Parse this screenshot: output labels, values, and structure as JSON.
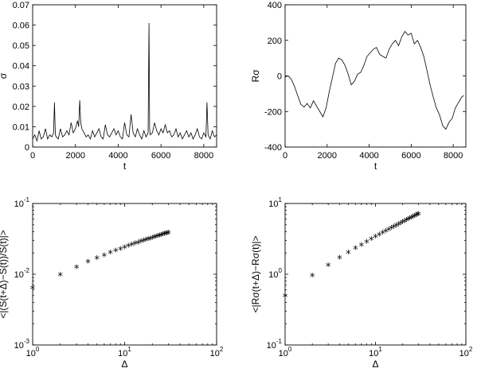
{
  "chart_data": [
    {
      "id": "p1",
      "type": "line",
      "xlabel": "t",
      "ylabel": "σ",
      "xlim": [
        0,
        8600
      ],
      "ylim": [
        0,
        0.07
      ],
      "xscale": "linear",
      "yscale": "linear",
      "xticks": [
        0,
        2000,
        4000,
        6000,
        8000
      ],
      "xtick_labels": [
        "0",
        "2000",
        "4000",
        "6000",
        "8000"
      ],
      "yticks": [
        0,
        0.01,
        0.02,
        0.03,
        0.04,
        0.05,
        0.06,
        0.07
      ],
      "ytick_labels": [
        "0",
        "0.01",
        "0.02",
        "0.03",
        "0.04",
        "0.05",
        "0.06",
        "0.07"
      ],
      "grid": false,
      "series": [
        {
          "color": "#000000",
          "x": [
            0,
            100,
            200,
            300,
            400,
            500,
            600,
            700,
            800,
            900,
            980,
            1020,
            1060,
            1100,
            1200,
            1300,
            1400,
            1500,
            1600,
            1700,
            1800,
            1900,
            2000,
            2100,
            2150,
            2200,
            2250,
            2300,
            2400,
            2500,
            2600,
            2700,
            2800,
            2900,
            3000,
            3100,
            3200,
            3300,
            3400,
            3500,
            3600,
            3700,
            3800,
            3900,
            4000,
            4100,
            4200,
            4300,
            4400,
            4500,
            4600,
            4700,
            4800,
            4900,
            5000,
            5100,
            5200,
            5300,
            5400,
            5440,
            5470,
            5500,
            5600,
            5700,
            5800,
            5900,
            6000,
            6100,
            6200,
            6300,
            6400,
            6500,
            6600,
            6700,
            6800,
            6900,
            7000,
            7100,
            7200,
            7300,
            7400,
            7500,
            7600,
            7700,
            7800,
            7900,
            8000,
            8100,
            8150,
            8200,
            8300,
            8400,
            8500,
            8600
          ],
          "y": [
            0.004,
            0.006,
            0.003,
            0.008,
            0.004,
            0.005,
            0.009,
            0.004,
            0.006,
            0.005,
            0.007,
            0.022,
            0.006,
            0.005,
            0.004,
            0.009,
            0.005,
            0.006,
            0.008,
            0.006,
            0.012,
            0.007,
            0.009,
            0.013,
            0.01,
            0.023,
            0.012,
            0.009,
            0.007,
            0.005,
            0.006,
            0.004,
            0.008,
            0.005,
            0.007,
            0.009,
            0.005,
            0.004,
            0.011,
            0.006,
            0.005,
            0.007,
            0.009,
            0.006,
            0.008,
            0.005,
            0.004,
            0.012,
            0.006,
            0.005,
            0.016,
            0.007,
            0.005,
            0.009,
            0.006,
            0.004,
            0.008,
            0.005,
            0.007,
            0.061,
            0.009,
            0.006,
            0.007,
            0.012,
            0.008,
            0.006,
            0.009,
            0.007,
            0.011,
            0.007,
            0.008,
            0.005,
            0.006,
            0.009,
            0.005,
            0.007,
            0.004,
            0.006,
            0.008,
            0.005,
            0.007,
            0.004,
            0.006,
            0.009,
            0.005,
            0.004,
            0.007,
            0.005,
            0.022,
            0.006,
            0.004,
            0.008,
            0.005,
            0.006
          ]
        }
      ]
    },
    {
      "id": "p2",
      "type": "line",
      "xlabel": "t",
      "ylabel": "Rσ",
      "xlim": [
        0,
        8600
      ],
      "ylim": [
        -400,
        400
      ],
      "xscale": "linear",
      "yscale": "linear",
      "xticks": [
        0,
        2000,
        4000,
        6000,
        8000
      ],
      "xtick_labels": [
        "0",
        "2000",
        "4000",
        "6000",
        "8000"
      ],
      "yticks": [
        -400,
        -200,
        0,
        200,
        400
      ],
      "ytick_labels": [
        "-400",
        "-200",
        "0",
        "200",
        "400"
      ],
      "grid": false,
      "series": [
        {
          "color": "#000000",
          "x": [
            0,
            150,
            300,
            450,
            600,
            750,
            900,
            1050,
            1200,
            1350,
            1500,
            1650,
            1800,
            1950,
            2100,
            2250,
            2400,
            2550,
            2700,
            2850,
            3000,
            3150,
            3300,
            3450,
            3600,
            3750,
            3900,
            4050,
            4200,
            4350,
            4500,
            4650,
            4800,
            4950,
            5100,
            5250,
            5400,
            5550,
            5700,
            5850,
            6000,
            6150,
            6300,
            6450,
            6600,
            6750,
            6900,
            7050,
            7200,
            7350,
            7500,
            7650,
            7800,
            7950,
            8100,
            8250,
            8400,
            8500
          ],
          "y": [
            -5,
            0,
            -20,
            -60,
            -110,
            -160,
            -175,
            -155,
            -180,
            -140,
            -170,
            -200,
            -230,
            -180,
            -90,
            -10,
            70,
            100,
            90,
            60,
            10,
            -50,
            -30,
            10,
            20,
            60,
            110,
            130,
            150,
            160,
            120,
            110,
            100,
            150,
            180,
            200,
            170,
            220,
            250,
            230,
            240,
            180,
            200,
            160,
            110,
            30,
            -50,
            -120,
            -180,
            -220,
            -280,
            -300,
            -260,
            -240,
            -180,
            -150,
            -120,
            -110
          ]
        }
      ]
    },
    {
      "id": "p3",
      "type": "scatter",
      "xlabel": "Δ",
      "ylabel": "<|(S(t+Δ)−S(t))/S(t)|>",
      "xlim": [
        1,
        100
      ],
      "ylim": [
        0.001,
        0.1
      ],
      "xscale": "log",
      "yscale": "log",
      "xticks": [
        1,
        10,
        100
      ],
      "xtick_labels": [
        [
          "10",
          "0"
        ],
        [
          "10",
          "1"
        ],
        [
          "10",
          "2"
        ]
      ],
      "yticks": [
        0.001,
        0.01,
        0.1
      ],
      "ytick_labels": [
        [
          "10",
          "-3"
        ],
        [
          "10",
          "-2"
        ],
        [
          "10",
          "-1"
        ]
      ],
      "marker": "*",
      "grid": false,
      "series": [
        {
          "color": "#000000",
          "x": [
            1,
            2,
            3,
            4,
            5,
            6,
            7,
            8,
            9,
            10,
            11,
            12,
            13,
            14,
            15,
            16,
            17,
            18,
            19,
            20,
            21,
            22,
            23,
            24,
            25,
            26,
            27,
            28,
            29,
            30
          ],
          "y": [
            0.0062,
            0.0095,
            0.0122,
            0.0145,
            0.0163,
            0.018,
            0.0195,
            0.0208,
            0.022,
            0.0232,
            0.0243,
            0.0253,
            0.0263,
            0.0272,
            0.028,
            0.0288,
            0.0296,
            0.0303,
            0.031,
            0.0317,
            0.0324,
            0.033,
            0.0336,
            0.0342,
            0.0348,
            0.0354,
            0.0359,
            0.0364,
            0.0369,
            0.0374
          ]
        }
      ]
    },
    {
      "id": "p4",
      "type": "scatter",
      "xlabel": "Δ",
      "ylabel": "<|Rσ(t+Δ)−Rσ(t)|>",
      "xlim": [
        1,
        100
      ],
      "ylim": [
        0.1,
        10
      ],
      "xscale": "log",
      "yscale": "log",
      "xticks": [
        1,
        10,
        100
      ],
      "xtick_labels": [
        [
          "10",
          "0"
        ],
        [
          "10",
          "1"
        ],
        [
          "10",
          "2"
        ]
      ],
      "yticks": [
        0.1,
        1,
        10
      ],
      "ytick_labels": [
        [
          "10",
          "-1"
        ],
        [
          "10",
          "0"
        ],
        [
          "10",
          "1"
        ]
      ],
      "marker": "*",
      "grid": false,
      "series": [
        {
          "color": "#000000",
          "x": [
            1,
            2,
            3,
            4,
            5,
            6,
            7,
            8,
            9,
            10,
            11,
            12,
            13,
            14,
            15,
            16,
            17,
            18,
            19,
            20,
            21,
            22,
            23,
            24,
            25,
            26,
            27,
            28,
            29,
            30
          ],
          "y": [
            0.48,
            0.92,
            1.3,
            1.65,
            1.95,
            2.25,
            2.52,
            2.78,
            3.03,
            3.27,
            3.5,
            3.72,
            3.94,
            4.15,
            4.35,
            4.55,
            4.74,
            4.93,
            5.11,
            5.29,
            5.47,
            5.64,
            5.81,
            5.97,
            6.13,
            6.29,
            6.45,
            6.6,
            6.75,
            6.9
          ]
        }
      ]
    }
  ]
}
